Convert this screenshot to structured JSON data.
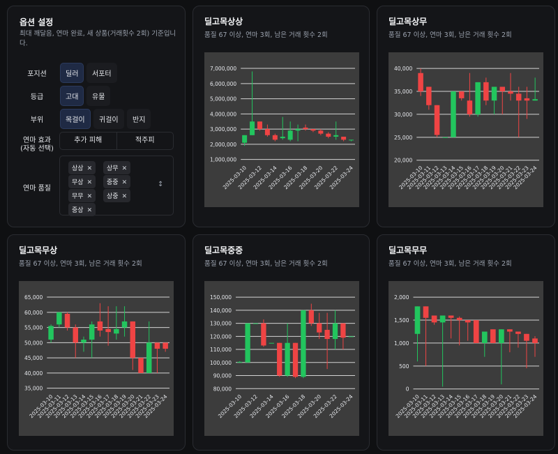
{
  "options": {
    "title": "옵션 설정",
    "description": "최대 깨달음, 연마 완료, 새 상품(거래횟수 2회) 기준입니다.",
    "rows": [
      {
        "label": "포지션",
        "buttons": [
          "딜러",
          "서포터"
        ],
        "selected": 0
      },
      {
        "label": "등급",
        "buttons": [
          "고대",
          "유물"
        ],
        "selected": 0
      },
      {
        "label": "부위",
        "buttons": [
          "목걸이",
          "귀걸이",
          "반지"
        ],
        "selected": 0
      }
    ],
    "effect": {
      "label": [
        "연마 효과",
        "(자동 선택)"
      ],
      "buttons": [
        "추가 피해",
        "적주피"
      ]
    },
    "quality": {
      "label": "연마 품질",
      "tags": [
        "상상",
        "상무",
        "무상",
        "중중",
        "무무",
        "상중",
        "중상"
      ]
    }
  },
  "chart_data": [
    {
      "type": "candlestick",
      "title": "딜고목상상",
      "subtitle": "품질 67 이상, 연마 3회, 남은 거래 횟수 2회",
      "x": [
        "2025-03-10",
        null,
        "2025-03-12",
        null,
        "2025-03-14",
        null,
        "2025-03-16",
        null,
        "2025-03-18",
        null,
        "2025-03-20",
        null,
        "2025-03-22",
        null,
        "2025-03-24"
      ],
      "open": [
        2100000,
        2600000,
        3500000,
        3000000,
        2600000,
        2400000,
        2300000,
        2900000,
        3100000,
        3000000,
        2900000,
        2700000,
        2500000,
        2500000,
        2300000
      ],
      "high": [
        2600000,
        6800000,
        3500000,
        3300000,
        2700000,
        3800000,
        3500000,
        3300000,
        3300000,
        3000000,
        3000000,
        2800000,
        3500000,
        2500000,
        2300000
      ],
      "low": [
        1900000,
        2600000,
        2900000,
        2500000,
        2200000,
        2300000,
        2200000,
        2200000,
        2900000,
        2800000,
        2600000,
        2400000,
        2300000,
        2200000,
        2200000
      ],
      "close": [
        2600000,
        3500000,
        3000000,
        2600000,
        2300000,
        2500000,
        2900000,
        3000000,
        3000000,
        2900000,
        2700000,
        2500000,
        2600000,
        2300000,
        2300000
      ],
      "ylim": [
        800000,
        7600000
      ],
      "yticks": [
        {
          "value": 1000000,
          "label": "1,000,000"
        },
        {
          "value": 2000000,
          "label": "2,000,000"
        },
        {
          "value": 3000000,
          "label": "3,000,000"
        },
        {
          "value": 4000000,
          "label": "4,000,000"
        },
        {
          "value": 5000000,
          "label": "5,000,000"
        },
        {
          "value": 6000000,
          "label": "6,000,000"
        },
        {
          "value": 7000000,
          "label": "7,000,000"
        }
      ],
      "grid": true,
      "up_color": "#22c55e",
      "down_color": "#ef4444"
    },
    {
      "type": "candlestick",
      "title": "딜고목상무",
      "subtitle": "품질 67 이상, 연마 3회, 남은 거래 횟수 2회",
      "x": [
        "2025-03-10",
        "2025-03-11",
        "2025-03-12",
        "2025-03-13",
        "2025-03-14",
        "2025-03-15",
        "2025-03-16",
        "2025-03-17",
        "2025-03-18",
        "2025-03-19",
        "2025-03-20",
        "2025-03-21",
        "2025-03-22",
        "2025-03-23",
        "2025-03-24"
      ],
      "open": [
        39000,
        36000,
        32000,
        25000,
        25000,
        35000,
        33000,
        30000,
        37000,
        33000,
        36000,
        35000,
        34500,
        33500,
        33000
      ],
      "high": [
        40000,
        36000,
        32000,
        25000,
        35000,
        35000,
        39000,
        37000,
        38000,
        36000,
        36000,
        39000,
        36000,
        36000,
        38000
      ],
      "low": [
        34000,
        31000,
        25000,
        25000,
        25000,
        33000,
        29500,
        29500,
        32000,
        30000,
        30000,
        33000,
        25000,
        29000,
        33000
      ],
      "close": [
        35000,
        32000,
        25500,
        25000,
        35000,
        33500,
        30000,
        37000,
        33000,
        36000,
        35000,
        34500,
        33000,
        33000,
        33300
      ],
      "ylim": [
        19500,
        42000
      ],
      "yticks": [
        {
          "value": 20000,
          "label": "20,000"
        },
        {
          "value": 25000,
          "label": "25,000"
        },
        {
          "value": 30000,
          "label": "30,000"
        },
        {
          "value": 35000,
          "label": "35,000"
        },
        {
          "value": 40000,
          "label": "40,000"
        }
      ],
      "grid": true,
      "up_color": "#22c55e",
      "down_color": "#ef4444"
    },
    {
      "type": "candlestick",
      "title": "딜고목무상",
      "subtitle": "품질 67 이상, 연마 3회, 남은 거래 횟수 2회",
      "x": [
        "2025-03-10",
        "2025-03-11",
        "2025-03-12",
        "2025-03-13",
        "2025-03-14",
        "2025-03-15",
        "2025-03-16",
        "2025-03-17",
        "2025-03-18",
        "2025-03-19",
        "2025-03-20",
        "2025-03-21",
        "2025-03-22",
        "2025-03-23",
        "2025-03-24"
      ],
      "open": [
        51000,
        56000,
        59500,
        55000,
        50000,
        51000,
        57000,
        54500,
        53000,
        55000,
        57000,
        45000,
        40000,
        50000,
        50000
      ],
      "high": [
        56000,
        60000,
        60000,
        56000,
        52000,
        57000,
        63000,
        62000,
        62000,
        62000,
        57000,
        45000,
        57000,
        50000,
        50000
      ],
      "low": [
        50000,
        55000,
        54000,
        45000,
        47000,
        45000,
        52000,
        49000,
        51000,
        52000,
        41000,
        40000,
        40000,
        40000,
        47000
      ],
      "close": [
        55500,
        60000,
        55000,
        50000,
        51000,
        56000,
        54000,
        53500,
        54500,
        57000,
        45000,
        40000,
        50000,
        48000,
        48000
      ],
      "ylim": [
        34000,
        68000
      ],
      "yticks": [
        {
          "value": 35000,
          "label": "35,000"
        },
        {
          "value": 40000,
          "label": "40,000"
        },
        {
          "value": 45000,
          "label": "45,000"
        },
        {
          "value": 50000,
          "label": "50,000"
        },
        {
          "value": 55000,
          "label": "55,000"
        },
        {
          "value": 60000,
          "label": "60,000"
        },
        {
          "value": 65000,
          "label": "65,000"
        }
      ],
      "grid": true,
      "up_color": "#22c55e",
      "down_color": "#ef4444"
    },
    {
      "type": "candlestick",
      "title": "딜고목중중",
      "subtitle": "품질 67 이상, 연마 3회, 남은 거래 횟수 2회",
      "x": [
        "2025-03-10",
        null,
        "2025-03-12",
        null,
        "2025-03-14",
        null,
        "2025-03-16",
        null,
        "2025-03-18",
        null,
        "2025-03-20",
        null,
        "2025-03-22",
        null,
        "2025-03-24"
      ],
      "open": [
        100000,
        100000,
        130000,
        130000,
        115000,
        115000,
        90000,
        115000,
        89000,
        140000,
        130000,
        125000,
        118000,
        130000,
        120000
      ],
      "high": [
        101000,
        130000,
        130000,
        133000,
        115000,
        115000,
        130000,
        115000,
        140000,
        145000,
        138000,
        138000,
        140000,
        130000,
        120000
      ],
      "low": [
        100000,
        100000,
        130000,
        112000,
        115000,
        89000,
        89000,
        88000,
        88000,
        128000,
        118000,
        95000,
        110000,
        110000,
        120000
      ],
      "close": [
        100500,
        130000,
        130000,
        113000,
        115000,
        90000,
        115000,
        89000,
        140000,
        130000,
        123000,
        118000,
        130000,
        119000,
        120000
      ],
      "ylim": [
        78000,
        157000
      ],
      "yticks": [
        {
          "value": 80000,
          "label": "80,000"
        },
        {
          "value": 90000,
          "label": "90,000"
        },
        {
          "value": 100000,
          "label": "100,000"
        },
        {
          "value": 110000,
          "label": "110,000"
        },
        {
          "value": 120000,
          "label": "120,000"
        },
        {
          "value": 130000,
          "label": "130,000"
        },
        {
          "value": 140000,
          "label": "140,000"
        },
        {
          "value": 150000,
          "label": "150,000"
        }
      ],
      "grid": true,
      "up_color": "#22c55e",
      "down_color": "#ef4444"
    },
    {
      "type": "candlestick",
      "title": "딜고목무무",
      "subtitle": "품질 67 이상, 연마 3회, 남은 거래 횟수 2회",
      "x": [
        "2025-03-10",
        "2025-03-11",
        "2025-03-12",
        "2025-03-13",
        "2025-03-14",
        "2025-03-15",
        "2025-03-16",
        "2025-03-17",
        "2025-03-18",
        "2025-03-19",
        "2025-03-20",
        "2025-03-21",
        "2025-03-22",
        "2025-03-23",
        "2025-03-24"
      ],
      "open": [
        1200,
        1800,
        1600,
        1450,
        1600,
        1550,
        1500,
        1500,
        1000,
        1300,
        1000,
        1300,
        1250,
        1200,
        1100
      ],
      "high": [
        1800,
        1800,
        1600,
        1600,
        1600,
        1580,
        1500,
        1500,
        1250,
        1300,
        1300,
        1300,
        1250,
        1200,
        1150
      ],
      "low": [
        600,
        500,
        1400,
        50,
        1100,
        950,
        1050,
        1000,
        700,
        1000,
        100,
        800,
        900,
        450,
        700
      ],
      "close": [
        1800,
        1550,
        1450,
        1600,
        1550,
        1500,
        1450,
        1000,
        1250,
        1000,
        1300,
        1250,
        1200,
        1050,
        1000
      ],
      "ylim": [
        -50,
        2200
      ],
      "yticks": [
        0,
        500,
        {
          "value": 1000,
          "label": "1,000"
        },
        {
          "value": 1500,
          "label": "1,500"
        },
        {
          "value": 2000,
          "label": "2,000"
        }
      ],
      "grid": true,
      "up_color": "#22c55e",
      "down_color": "#ef4444"
    }
  ]
}
